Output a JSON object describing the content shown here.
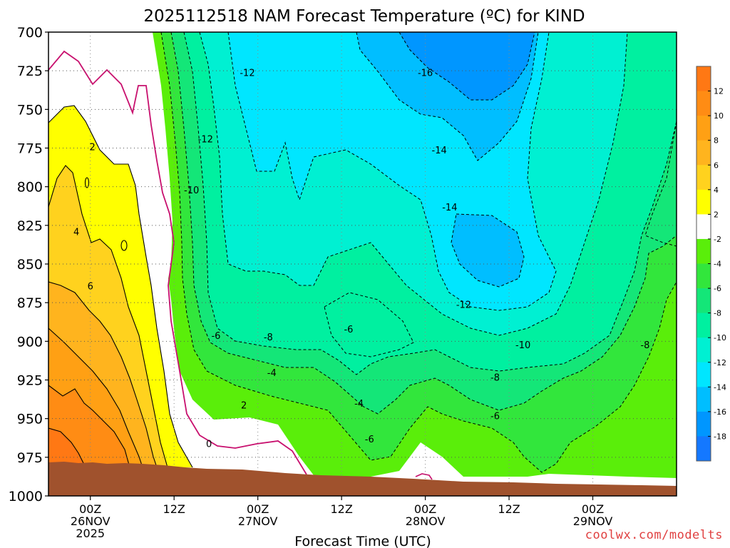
{
  "title": "2025112518 NAM Forecast Temperature (ºC) for KIND",
  "xlabel": "Forecast Time (UTC)",
  "credit": "coolwx.com/modelts",
  "colors": {
    "background": "#ffffff",
    "ground": "#a0522d",
    "freezing_line": "#c8106e",
    "contour": "#000000"
  },
  "chart_data": {
    "type": "heatmap",
    "title": "2025112518 NAM Forecast Temperature (ºC) for KIND",
    "xlabel": "Forecast Time (UTC)",
    "ylabel": "",
    "y_axis": {
      "ticks": [
        700,
        725,
        750,
        775,
        800,
        825,
        850,
        875,
        900,
        925,
        950,
        975,
        1000
      ],
      "range": [
        1000,
        700
      ],
      "inverted": true
    },
    "x_axis": {
      "range_hours": [
        -6,
        84
      ],
      "ticks": [
        {
          "hour": 0,
          "label": [
            "00Z",
            "26NOV",
            "2025"
          ]
        },
        {
          "hour": 12,
          "label": [
            "12Z"
          ]
        },
        {
          "hour": 24,
          "label": [
            "00Z",
            "27NOV"
          ]
        },
        {
          "hour": 36,
          "label": [
            "12Z"
          ]
        },
        {
          "hour": 48,
          "label": [
            "00Z",
            "28NOV"
          ]
        },
        {
          "hour": 60,
          "label": [
            "12Z"
          ]
        },
        {
          "hour": 72,
          "label": [
            "00Z",
            "29NOV"
          ]
        }
      ]
    },
    "grid": true,
    "colorbar": {
      "labels": [
        "12",
        "10",
        "8",
        "6",
        "4",
        "2",
        "-2",
        "-4",
        "-6",
        "-8",
        "-10",
        "-12",
        "-14",
        "-16",
        "-18"
      ],
      "bins": [
        {
          "range": [
            12,
            14
          ],
          "color": "#ff7814"
        },
        {
          "range": [
            10,
            12
          ],
          "color": "#ff8c14"
        },
        {
          "range": [
            8,
            10
          ],
          "color": "#ffa014"
        },
        {
          "range": [
            6,
            8
          ],
          "color": "#ffb41e"
        },
        {
          "range": [
            4,
            6
          ],
          "color": "#ffd21e"
        },
        {
          "range": [
            2,
            4
          ],
          "color": "#ffff00"
        },
        {
          "range": [
            -2,
            2
          ],
          "color": "#ffffff"
        },
        {
          "range": [
            -4,
            -2
          ],
          "color": "#5aee0a"
        },
        {
          "range": [
            -6,
            -4
          ],
          "color": "#32e63c"
        },
        {
          "range": [
            -8,
            -6
          ],
          "color": "#14e678"
        },
        {
          "range": [
            -10,
            -8
          ],
          "color": "#00f0a0"
        },
        {
          "range": [
            -12,
            -10
          ],
          "color": "#00f0d2"
        },
        {
          "range": [
            -14,
            -12
          ],
          "color": "#00e6ff"
        },
        {
          "range": [
            -16,
            -14
          ],
          "color": "#00beff"
        },
        {
          "range": [
            -18,
            -16
          ],
          "color": "#0096ff"
        },
        {
          "range": [
            -20,
            -18
          ],
          "color": "#1478ff"
        }
      ]
    },
    "contour_labels": [
      {
        "text": "-12",
        "hour": 22.5,
        "p": 727
      },
      {
        "text": "-16",
        "hour": 48,
        "p": 727
      },
      {
        "text": "-12",
        "hour": 16.5,
        "p": 770
      },
      {
        "text": "2",
        "hour": 0.3,
        "p": 775
      },
      {
        "text": "-14",
        "hour": 50,
        "p": 777
      },
      {
        "text": "-10",
        "hour": 14.5,
        "p": 803
      },
      {
        "text": "-14",
        "hour": 51.5,
        "p": 814
      },
      {
        "text": "4",
        "hour": -2,
        "p": 830
      },
      {
        "text": "6",
        "hour": 0,
        "p": 865
      },
      {
        "text": "-12",
        "hour": 53.5,
        "p": 877
      },
      {
        "text": "-6",
        "hour": 37,
        "p": 893
      },
      {
        "text": "-6",
        "hour": 18,
        "p": 897
      },
      {
        "text": "-8",
        "hour": 25.5,
        "p": 898
      },
      {
        "text": "-10",
        "hour": 62,
        "p": 903
      },
      {
        "text": "-8",
        "hour": 79.5,
        "p": 903
      },
      {
        "text": "-4",
        "hour": 26,
        "p": 921
      },
      {
        "text": "-8",
        "hour": 58,
        "p": 924
      },
      {
        "text": "2",
        "hour": 22,
        "p": 942
      },
      {
        "text": "-4",
        "hour": 38.5,
        "p": 941
      },
      {
        "text": "-6",
        "hour": 58,
        "p": 949
      },
      {
        "text": "-6",
        "hour": 40,
        "p": 964
      },
      {
        "text": "0",
        "hour": 17,
        "p": 967
      }
    ],
    "surface_pressure_approx": 978
  }
}
